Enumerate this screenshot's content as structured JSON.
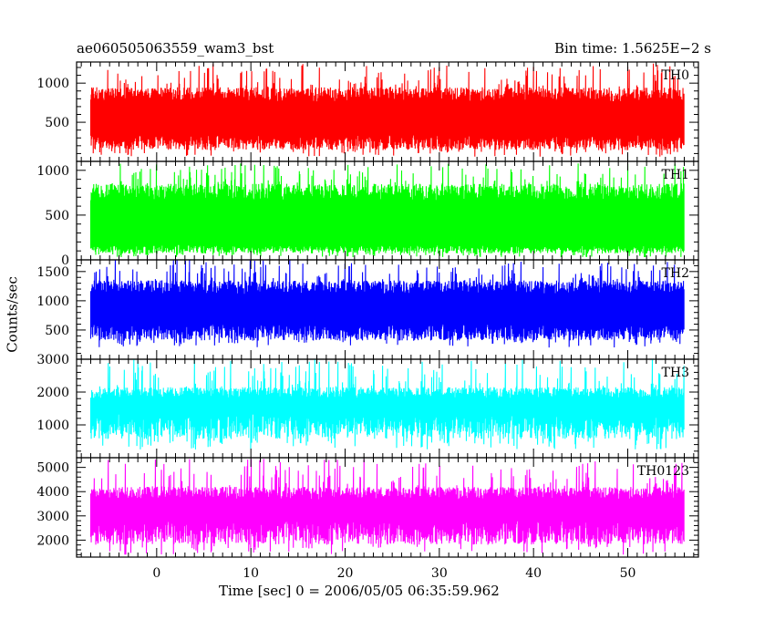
{
  "header": {
    "title": "ae060505063559_wam3_bst",
    "bin_time": "Bin time: 1.5625E−2 s"
  },
  "axes": {
    "ylabel": "Counts/sec",
    "xlabel": "Time [sec] 0 = 2006/05/05 06:35:59.962"
  },
  "chart_data": [
    {
      "type": "line",
      "name": "TH0",
      "color": "#ff0000",
      "xlim": [
        -8.5,
        57.5
      ],
      "ylim": [
        0,
        1270
      ],
      "y_ticks": [
        500,
        1000
      ],
      "x": [
        -7,
        56
      ],
      "typical_low": 200,
      "typical_high": 950,
      "min": 60,
      "max": 1250,
      "x_ticks_labeled": false
    },
    {
      "type": "line",
      "name": "TH1",
      "color": "#00ff00",
      "xlim": [
        -8.5,
        57.5
      ],
      "ylim": [
        0,
        1100
      ],
      "y_ticks": [
        0,
        500,
        1000
      ],
      "x": [
        -7,
        56
      ],
      "typical_low": 100,
      "typical_high": 850,
      "min": 30,
      "max": 1080,
      "x_ticks_labeled": false
    },
    {
      "type": "line",
      "name": "TH2",
      "color": "#0000ff",
      "xlim": [
        -8.5,
        57.5
      ],
      "ylim": [
        0,
        1700
      ],
      "y_ticks": [
        500,
        1000,
        1500
      ],
      "x": [
        -7,
        56
      ],
      "typical_low": 400,
      "typical_high": 1350,
      "min": 200,
      "max": 1700,
      "x_ticks_labeled": false
    },
    {
      "type": "line",
      "name": "TH3",
      "color": "#00ffff",
      "xlim": [
        -8.5,
        57.5
      ],
      "ylim": [
        0,
        3000
      ],
      "y_ticks": [
        1000,
        2000,
        3000
      ],
      "x": [
        -7,
        56
      ],
      "typical_low": 800,
      "typical_high": 2150,
      "min": 250,
      "max": 3000,
      "x_ticks_labeled": false
    },
    {
      "type": "line",
      "name": "TH0123",
      "color": "#ff00ff",
      "xlim": [
        -8.5,
        57.5
      ],
      "ylim": [
        1300,
        5400
      ],
      "y_ticks": [
        2000,
        3000,
        4000,
        5000
      ],
      "x": [
        -7,
        56
      ],
      "typical_low": 2100,
      "typical_high": 4200,
      "min": 1400,
      "max": 5350,
      "x_ticks": [
        0,
        10,
        20,
        30,
        40,
        50
      ],
      "x_ticks_labeled": true
    }
  ]
}
